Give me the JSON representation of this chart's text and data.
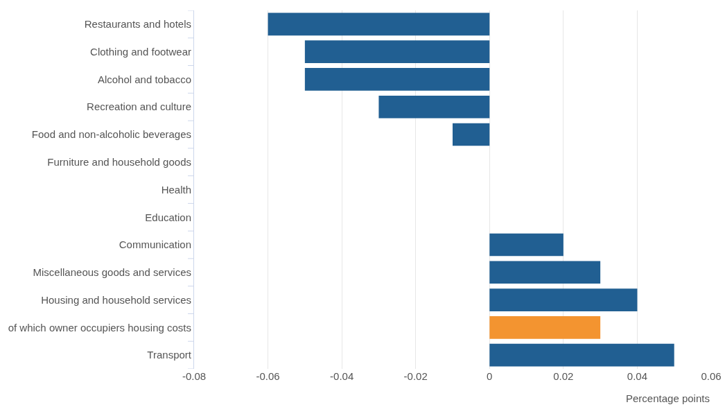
{
  "chart_data": {
    "type": "bar",
    "orientation": "horizontal",
    "categories": [
      "Restaurants and hotels",
      "Clothing and footwear",
      "Alcohol and tobacco",
      "Recreation and culture",
      "Food and non-alcoholic beverages",
      "Furniture and household goods",
      "Health",
      "Education",
      "Communication",
      "Miscellaneous goods and services",
      "Housing and household services",
      "of which owner occupiers housing costs",
      "Transport"
    ],
    "values": [
      -0.06,
      -0.05,
      -0.05,
      -0.03,
      -0.01,
      0,
      0,
      0,
      0.02,
      0.03,
      0.04,
      0.03,
      0.05
    ],
    "colors": [
      "#215f92",
      "#215f92",
      "#215f92",
      "#215f92",
      "#215f92",
      "#215f92",
      "#215f92",
      "#215f92",
      "#215f92",
      "#215f92",
      "#215f92",
      "#f39430",
      "#215f92"
    ],
    "xlabel": "Percentage points",
    "xlim": [
      -0.08,
      0.06
    ],
    "xticks": [
      -0.08,
      -0.06,
      -0.04,
      -0.02,
      0,
      0.02,
      0.04,
      0.06
    ],
    "grid": "x"
  }
}
